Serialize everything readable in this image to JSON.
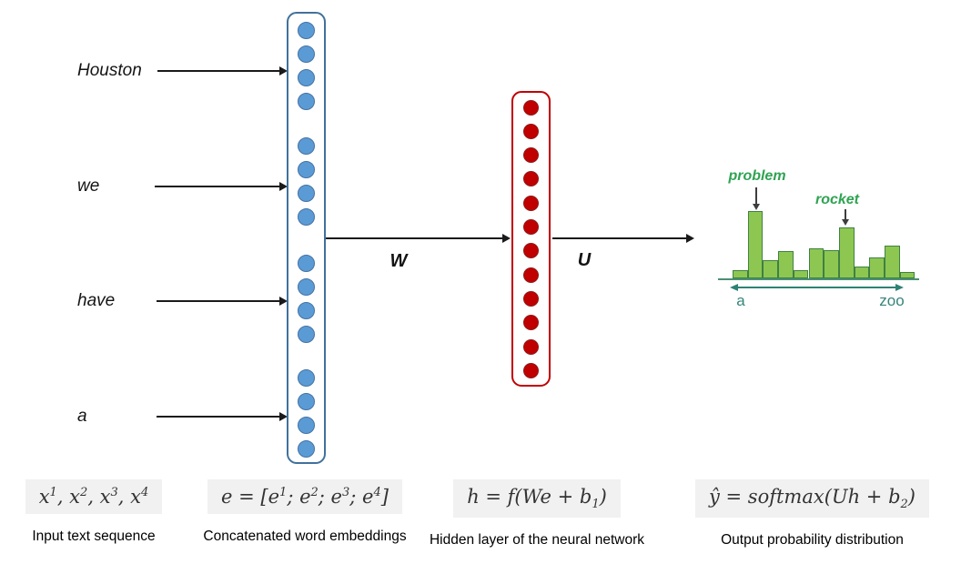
{
  "input_words": [
    {
      "label": "Houston"
    },
    {
      "label": "we"
    },
    {
      "label": "have"
    },
    {
      "label": "a"
    }
  ],
  "embedding_layer": {
    "groups": 4,
    "circles_per_group": 4,
    "circle_fill": "#5B9BD5",
    "circle_stroke": "#4472A4",
    "box_stroke": "#41719C"
  },
  "hidden_layer": {
    "circles": 12,
    "circle_fill": "#C00000",
    "circle_stroke": "#8F1A1A",
    "box_stroke": "#C00000"
  },
  "weights": {
    "first": "W",
    "second": "U"
  },
  "output_distribution": {
    "bars_relative_height": [
      0.12,
      1.0,
      0.27,
      0.41,
      0.12,
      0.45,
      0.42,
      0.76,
      0.18,
      0.31,
      0.48,
      0.09
    ],
    "bar_fill": "#8DC752",
    "bar_stroke": "#3E8142",
    "annotations": [
      {
        "label": "problem",
        "bar_index": 1
      },
      {
        "label": "rocket",
        "bar_index": 7
      }
    ],
    "annotation_color": "#2FA352",
    "axis_start_label": "a",
    "axis_end_label": "zoo",
    "axis_color": "#35857A"
  },
  "formulas": [
    {
      "math": "x^{1}, x^{2}, x^{3}, x^{4}",
      "caption": "Input text sequence"
    },
    {
      "math": "e = [e^{1}; e^{2}; e^{3}; e^{4}]",
      "caption": "Concatenated word embeddings"
    },
    {
      "math": "h = f(We + b_{1})",
      "caption": "Hidden layer of the neural network"
    },
    {
      "math": "ŷ = softmax(Uh + b_{2})",
      "caption": "Output probability distribution"
    }
  ]
}
